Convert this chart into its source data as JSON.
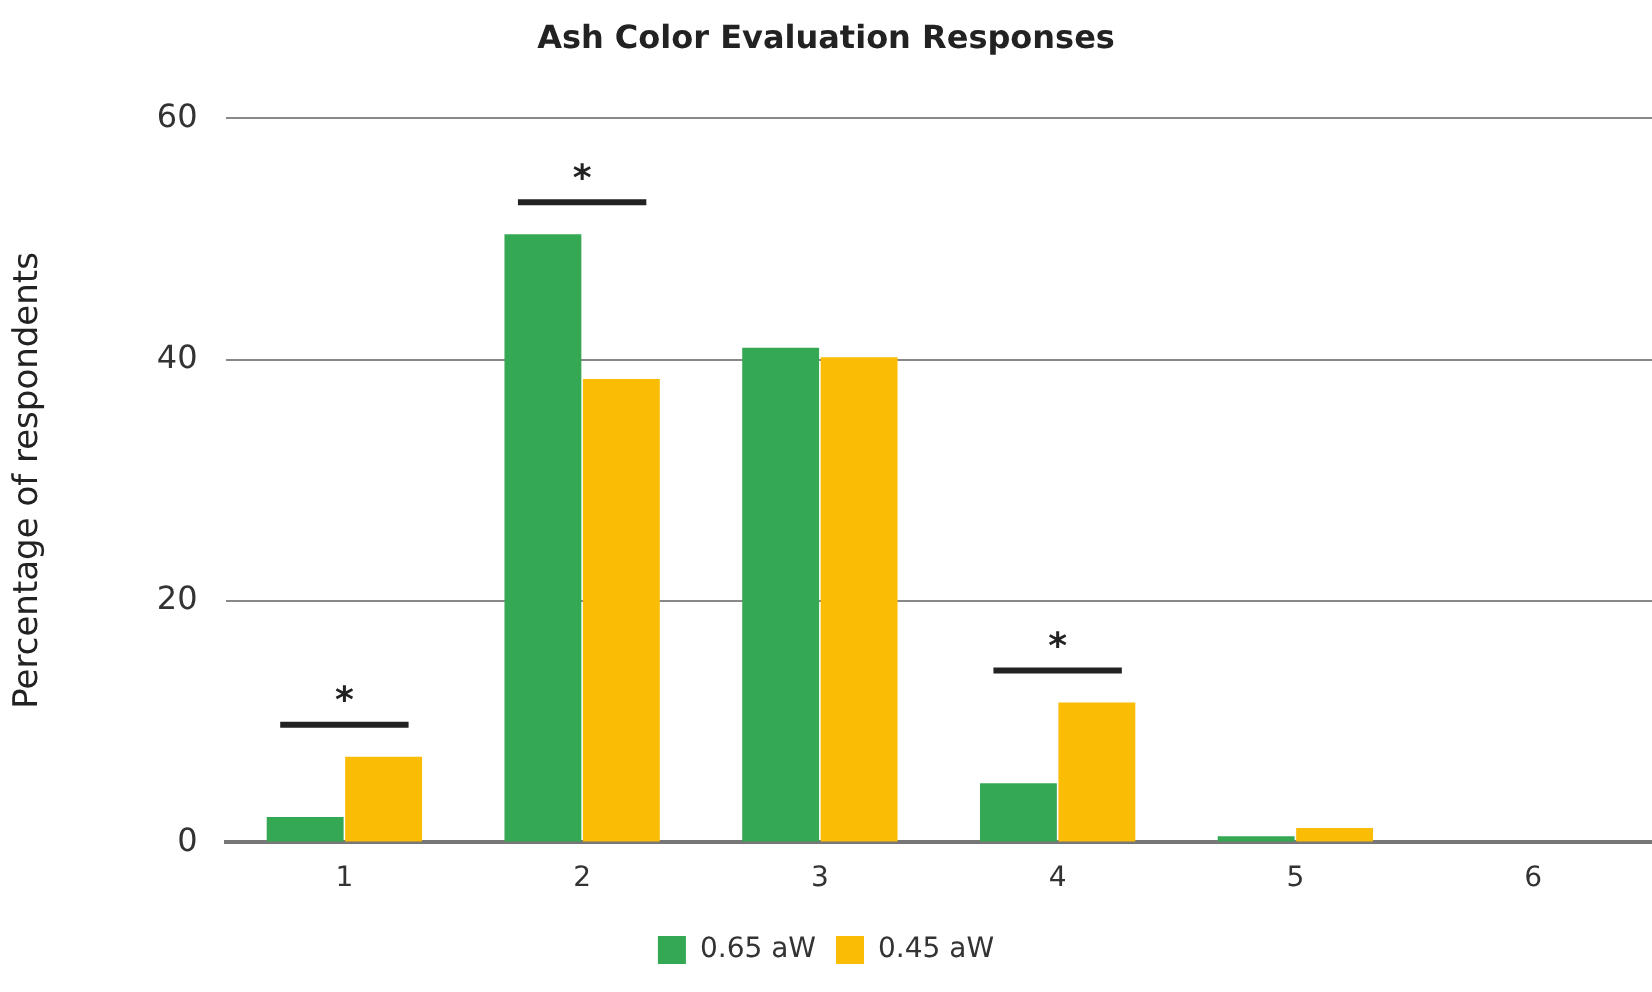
{
  "chart_data": {
    "type": "bar",
    "title": "Ash Color Evaluation Responses",
    "ylabel": "Percentage of respondents",
    "categories": [
      "1",
      "2",
      "3",
      "4",
      "5",
      "6"
    ],
    "series": [
      {
        "name": "0.65 aW",
        "color": "#34a853",
        "values": [
          2.1,
          50.4,
          41.0,
          4.9,
          0.5,
          0
        ]
      },
      {
        "name": "0.45 aW",
        "color": "#fbbc05",
        "values": [
          7.1,
          38.4,
          40.2,
          11.6,
          1.2,
          0
        ]
      }
    ],
    "ylim": [
      0,
      60
    ],
    "yticks": [
      0,
      20,
      40,
      60
    ],
    "grid": "y",
    "legend": "bottom",
    "annotations": [
      "*",
      "*",
      "*"
    ]
  }
}
